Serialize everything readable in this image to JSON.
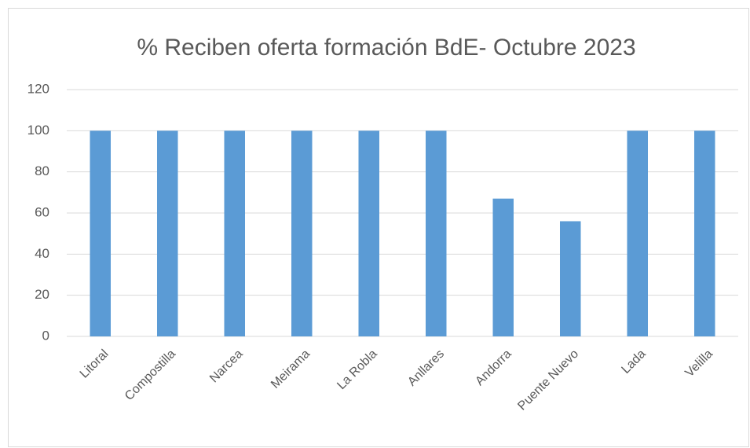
{
  "chart_data": {
    "type": "bar",
    "title": "% Reciben oferta formación BdE- Octubre 2023",
    "categories": [
      "Litoral",
      "Compostilla",
      "Narcea",
      "Meirama",
      "La Robla",
      "Anllares",
      "Andorra",
      "Puente Nuevo",
      "Lada",
      "Velilla"
    ],
    "values": [
      100,
      100,
      100,
      100,
      100,
      100,
      67,
      56,
      100,
      100
    ],
    "color": "#5b9bd5",
    "ylim": [
      0,
      120
    ],
    "yticks": [
      0,
      20,
      40,
      60,
      80,
      100,
      120
    ],
    "grid": true
  }
}
